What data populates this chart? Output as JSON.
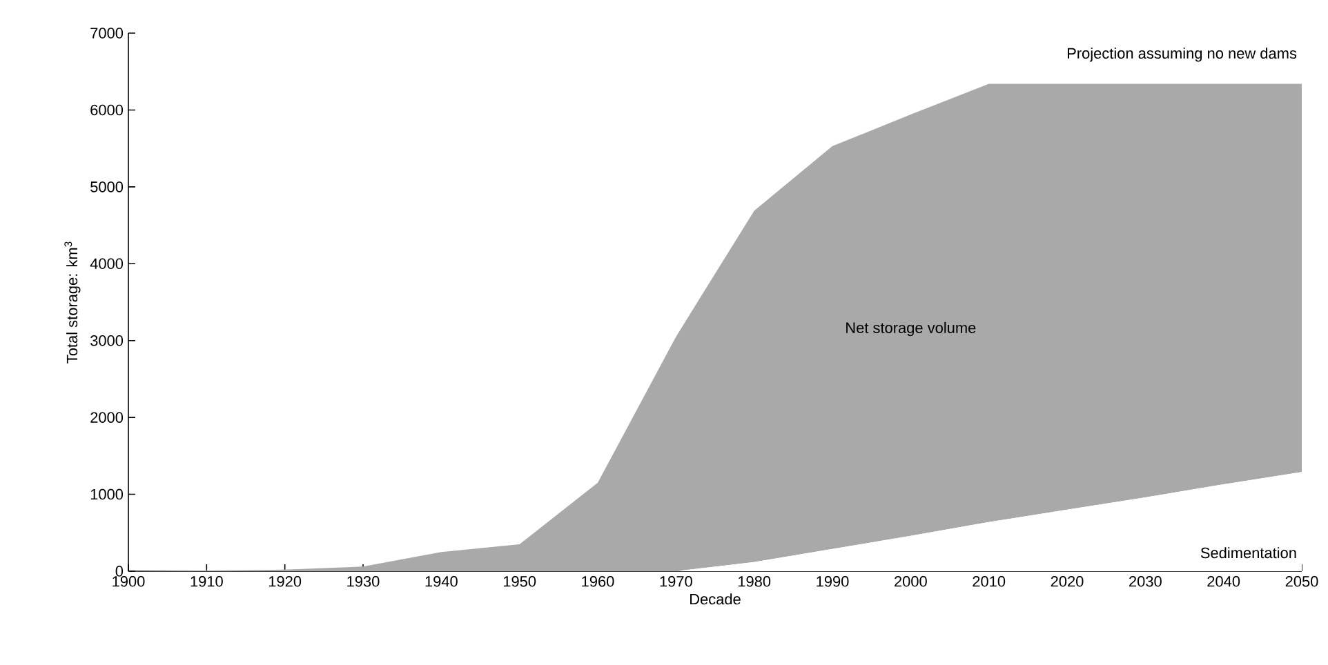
{
  "chart_data": {
    "type": "area",
    "stacked": true,
    "xlabel": "Decade",
    "ylabel": "Total storage: km$^{3}$",
    "x": [
      1900,
      1910,
      1920,
      1930,
      1940,
      1950,
      1960,
      1970,
      1980,
      1990,
      2000,
      2010,
      2020,
      2030,
      2040,
      2050
    ],
    "series": [
      {
        "name": "Sedimentation",
        "color": "#ffffff",
        "values": [
          0,
          0,
          0,
          0,
          0,
          0,
          0,
          0,
          120,
          290,
          460,
          640,
          800,
          960,
          1130,
          1290
        ]
      },
      {
        "name": "Net storage volume",
        "color": "#a9a9a9",
        "values": [
          0,
          10,
          20,
          60,
          250,
          350,
          1150,
          3050,
          4570,
          5240,
          5480,
          5700,
          5540,
          5380,
          5210,
          5050
        ]
      }
    ],
    "annotations": [
      "Projection assuming no new dams"
    ],
    "xlim": [
      1900,
      2050
    ],
    "xticks": [
      1900,
      1910,
      1920,
      1930,
      1940,
      1950,
      1960,
      1970,
      1980,
      1990,
      2000,
      2010,
      2020,
      2030,
      2040,
      2050
    ],
    "ylim": [
      0,
      7000
    ],
    "yticks": [
      0,
      1000,
      2000,
      3000,
      4000,
      5000,
      6000,
      7000
    ],
    "grid": false,
    "legend": false
  }
}
